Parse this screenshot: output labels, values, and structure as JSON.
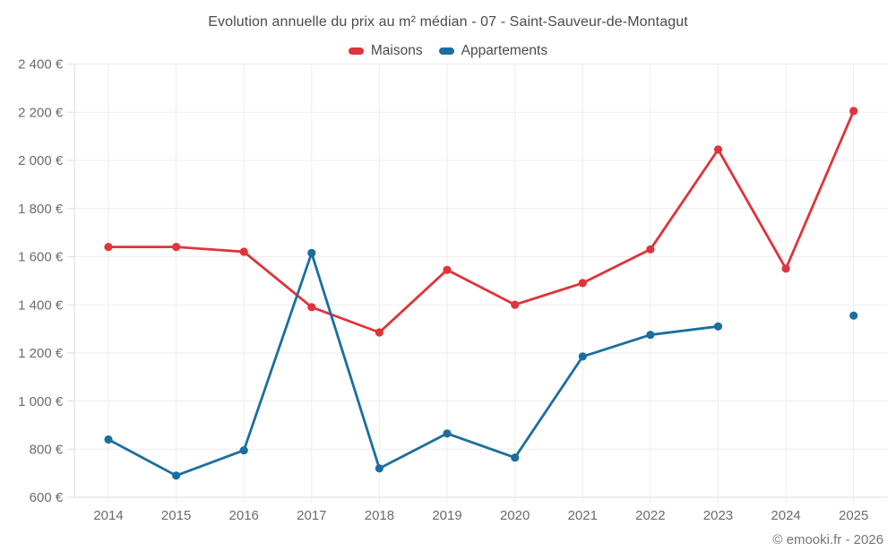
{
  "chart": {
    "title": "Evolution annuelle du prix au m² médian - 07 - Saint-Sauveur-de-Montagut"
  },
  "legend": {
    "items": [
      {
        "label": "Maisons",
        "color": "#e0333a"
      },
      {
        "label": "Appartements",
        "color": "#1a6f9f"
      }
    ]
  },
  "copyright": "© emooki.fr - 2026",
  "chart_data": {
    "type": "line",
    "title": "Evolution annuelle du prix au m² médian - 07 - Saint-Sauveur-de-Montagut",
    "categories": [
      "2014",
      "2015",
      "2016",
      "2017",
      "2018",
      "2019",
      "2020",
      "2021",
      "2022",
      "2023",
      "2024",
      "2025"
    ],
    "series": [
      {
        "name": "Maisons",
        "color": "#e0333a",
        "values": [
          1640,
          1640,
          1620,
          1390,
          1285,
          1545,
          1400,
          1490,
          1630,
          2045,
          1550,
          2205
        ]
      },
      {
        "name": "Appartements",
        "color": "#1a6f9f",
        "values": [
          840,
          690,
          795,
          1615,
          720,
          865,
          765,
          1185,
          1275,
          1310,
          null,
          1355
        ]
      }
    ],
    "xlabel": "",
    "ylabel": "",
    "ylim": [
      600,
      2400
    ],
    "ytick_step": 200,
    "ytick_labels": [
      "600 €",
      "800 €",
      "1 000 €",
      "1 200 €",
      "1 400 €",
      "1 600 €",
      "1 800 €",
      "2 000 €",
      "2 200 €",
      "2 400 €"
    ],
    "grid": true,
    "legend_position": "top",
    "currency_suffix": " €"
  },
  "style": {
    "grid_color": "#ededed",
    "axis_color": "#dcdcdc",
    "tick_text_color": "#6b6b6b",
    "title_color": "#4b4b4b",
    "background": "#ffffff"
  }
}
